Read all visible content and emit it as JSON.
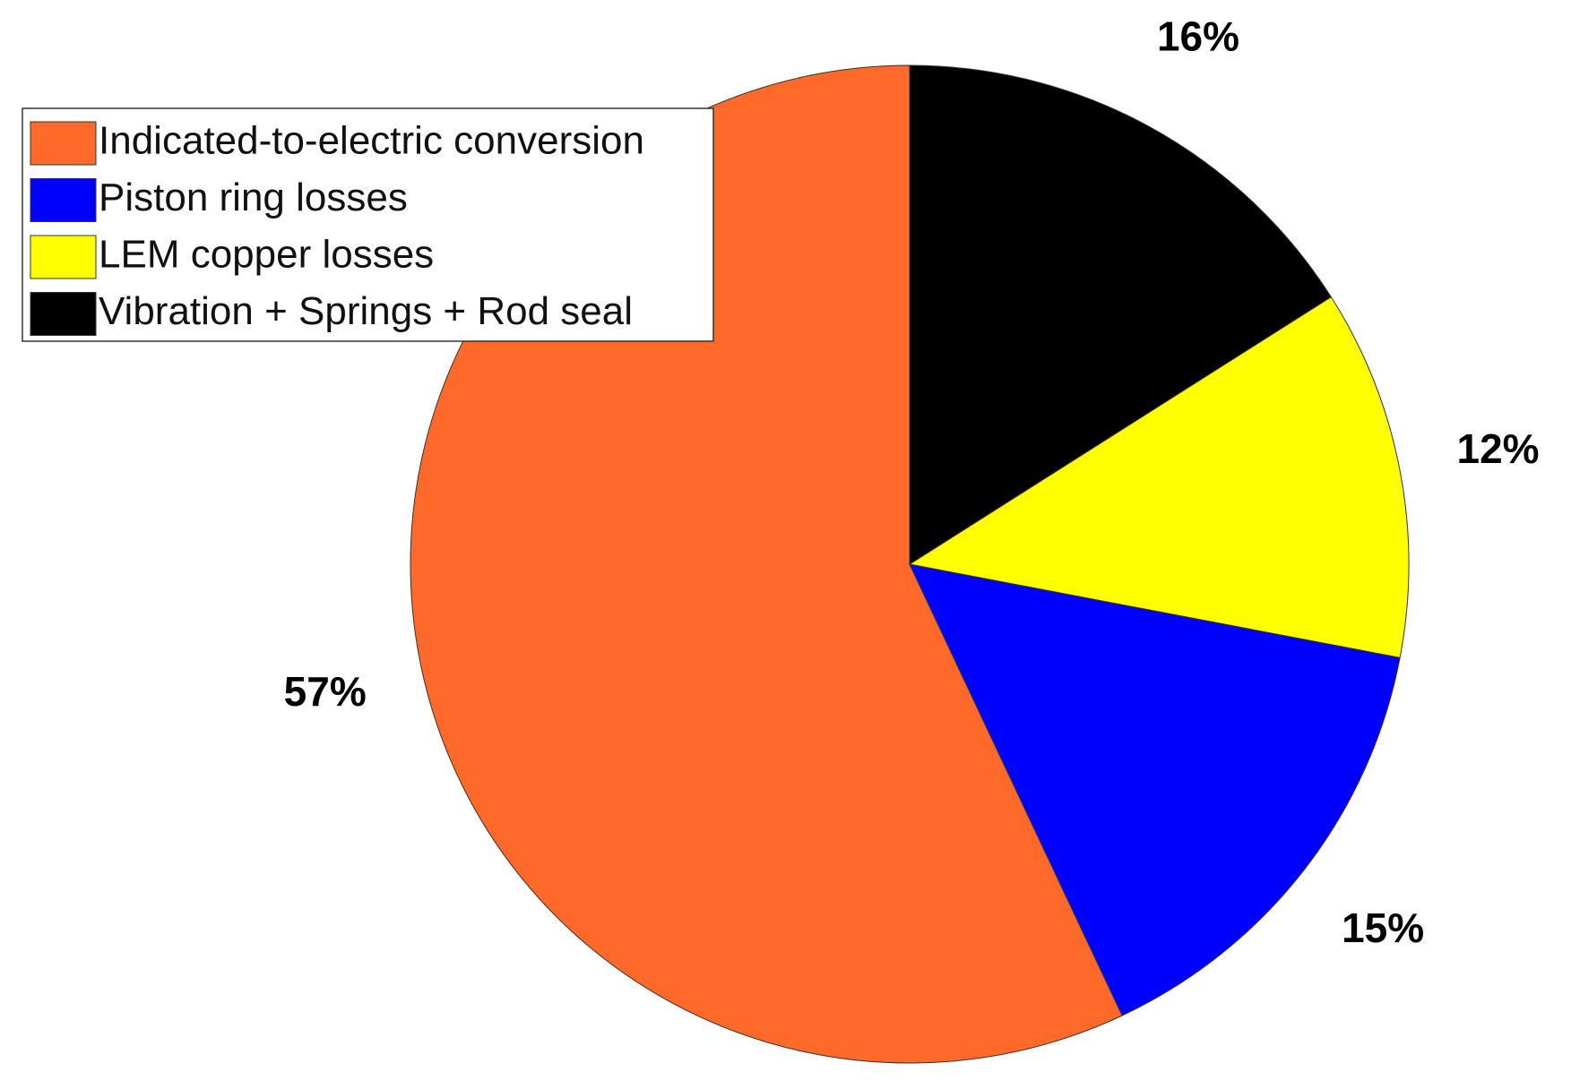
{
  "chart_data": {
    "type": "pie",
    "categories": [
      "Indicated-to-electric conversion",
      "Piston ring losses",
      "LEM copper losses",
      "Vibration + Springs + Rod seal"
    ],
    "values": [
      57,
      15,
      12,
      16
    ],
    "value_labels": [
      "57%",
      "15%",
      "12%",
      "16%"
    ],
    "colors": [
      "#ff6a2b",
      "#0000ff",
      "#ffff00",
      "#000000"
    ],
    "legend": "upper-left"
  }
}
